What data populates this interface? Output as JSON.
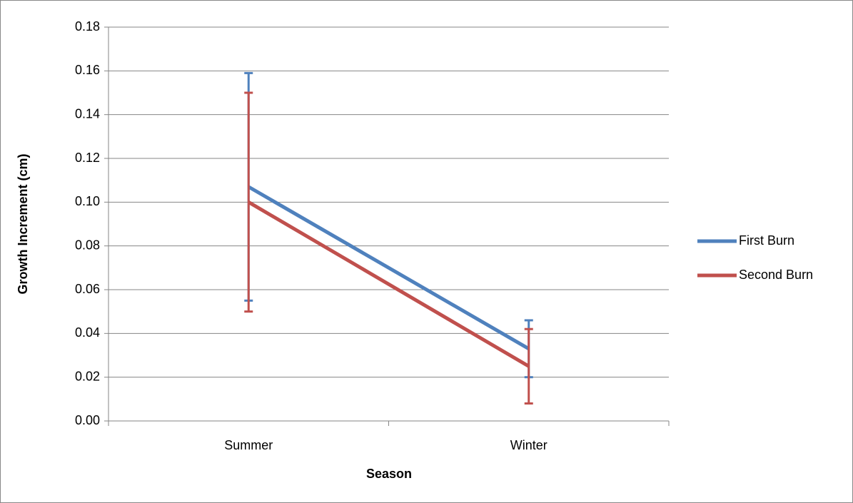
{
  "chart_data": {
    "type": "line",
    "x_label": "Season",
    "y_label": "Growth Increment (cm)",
    "categories": [
      "Summer",
      "Winter"
    ],
    "series": [
      {
        "name": "First Burn",
        "color": "#4f81bd",
        "values": [
          0.107,
          0.033
        ],
        "errors": [
          0.052,
          0.013
        ]
      },
      {
        "name": "Second Burn",
        "color": "#c0504d",
        "values": [
          0.1,
          0.025
        ],
        "errors": [
          0.05,
          0.017
        ]
      }
    ],
    "ylim": [
      0,
      0.18
    ],
    "yticks": [
      {
        "value": 0,
        "label": "0.00"
      },
      0.02,
      0.04,
      0.06,
      0.08,
      {
        "value": 0.1,
        "label": "0.10"
      },
      0.12,
      0.14,
      0.16,
      0.18
    ],
    "grid": true,
    "legend": "right"
  }
}
